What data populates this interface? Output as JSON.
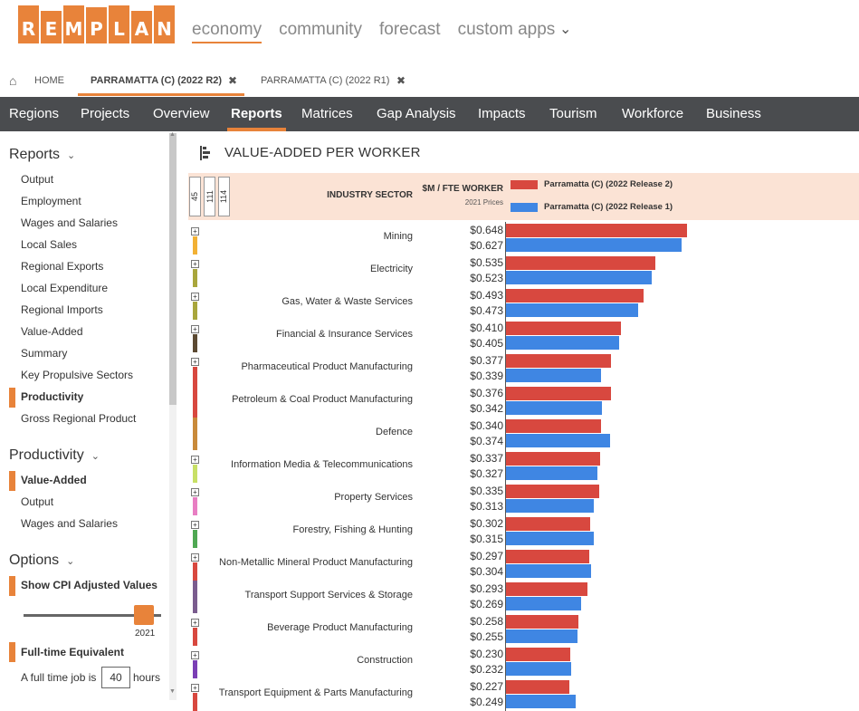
{
  "brand": {
    "letters": [
      "R",
      "E",
      "M",
      "P",
      "L",
      "A",
      "N"
    ],
    "accent": "#e8833a"
  },
  "topnav": {
    "items": [
      {
        "label": "economy",
        "active": true
      },
      {
        "label": "community",
        "active": false
      },
      {
        "label": "forecast",
        "active": false
      },
      {
        "label": "custom apps",
        "active": false
      }
    ],
    "chevron": "⌄"
  },
  "tabs": {
    "home_icon": "⌂",
    "home": "HOME",
    "items": [
      {
        "label": "PARRAMATTA (C) (2022 R2)",
        "close": "✖"
      },
      {
        "label": "PARRAMATTA (C) (2022 R1)",
        "close": "✖"
      }
    ]
  },
  "mainnav": {
    "items": [
      "Regions",
      "Projects",
      "Overview",
      "Reports",
      "Matrices",
      "Gap Analysis",
      "Impacts",
      "Tourism",
      "Workforce",
      "Business"
    ],
    "active": "Reports"
  },
  "sidebar": {
    "reports_heading": "Reports",
    "reports_items": [
      "Output",
      "Employment",
      "Wages and Salaries",
      "Local Sales",
      "Regional Exports",
      "Local Expenditure",
      "Regional Imports",
      "Value-Added",
      "Summary",
      "Key Propulsive Sectors",
      "Productivity",
      "Gross Regional Product"
    ],
    "reports_active": "Productivity",
    "productivity_heading": "Productivity",
    "productivity_items": [
      "Value-Added",
      "Output",
      "Wages and Salaries"
    ],
    "productivity_active": "Value-Added",
    "options_heading": "Options",
    "cpi_label": "Show CPI Adjusted Values",
    "cpi_year": "2021",
    "fte_label": "Full-time Equivalent",
    "fte_text_before": "A full time job is",
    "fte_hours": "40",
    "fte_text_after": "hours",
    "chevron": "⌄"
  },
  "report": {
    "title": "VALUE-ADDED PER WORKER",
    "header_buttons": [
      "45",
      "111",
      "114"
    ],
    "col_sector": "INDUSTRY SECTOR",
    "col_value": "$M / FTE WORKER",
    "col_prices": "2021 Prices",
    "expand_symbol": "+"
  },
  "chart_data": {
    "type": "bar",
    "orientation": "horizontal",
    "legend_position": "top-right",
    "series": [
      {
        "name": "Parramatta (C) (2022 Release 2)",
        "color": "#d8483f",
        "values": [
          0.648,
          0.535,
          0.493,
          0.41,
          0.377,
          0.376,
          0.34,
          0.337,
          0.335,
          0.302,
          0.297,
          0.293,
          0.258,
          0.23,
          0.227
        ]
      },
      {
        "name": "Parramatta (C) (2022 Release 1)",
        "color": "#3f86e3",
        "values": [
          0.627,
          0.523,
          0.473,
          0.405,
          0.339,
          0.342,
          0.374,
          0.327,
          0.313,
          0.315,
          0.304,
          0.269,
          0.255,
          0.232,
          0.249
        ]
      }
    ],
    "value_labels": [
      [
        "$0.648",
        "$0.627"
      ],
      [
        "$0.535",
        "$0.523"
      ],
      [
        "$0.493",
        "$0.473"
      ],
      [
        "$0.410",
        "$0.405"
      ],
      [
        "$0.377",
        "$0.339"
      ],
      [
        "$0.376",
        "$0.342"
      ],
      [
        "$0.340",
        "$0.374"
      ],
      [
        "$0.337",
        "$0.327"
      ],
      [
        "$0.335",
        "$0.313"
      ],
      [
        "$0.302",
        "$0.315"
      ],
      [
        "$0.297",
        "$0.304"
      ],
      [
        "$0.293",
        "$0.269"
      ],
      [
        "$0.258",
        "$0.255"
      ],
      [
        "$0.230",
        "$0.232"
      ],
      [
        "$0.227",
        "$0.249"
      ]
    ],
    "categories": [
      {
        "name": "Mining",
        "color": "#f2b134",
        "expandable": true
      },
      {
        "name": "Electricity",
        "color": "#a9a63c",
        "expandable": true
      },
      {
        "name": "Gas, Water & Waste Services",
        "color": "#a9a63c",
        "expandable": true
      },
      {
        "name": "Financial & Insurance Services",
        "color": "#5c4a32",
        "expandable": true
      },
      {
        "name": "Pharmaceutical Product Manufacturing",
        "color": "#d8483f",
        "expandable": true
      },
      {
        "name": "Petroleum & Coal Product Manufacturing",
        "color": "#d8483f",
        "expandable": false
      },
      {
        "name": "Defence",
        "color": "#c98a3a",
        "expandable": false
      },
      {
        "name": "Information Media & Telecommunications",
        "color": "#c8e066",
        "expandable": true
      },
      {
        "name": "Property Services",
        "color": "#e87ec3",
        "expandable": true
      },
      {
        "name": "Forestry, Fishing & Hunting",
        "color": "#4fa853",
        "expandable": true
      },
      {
        "name": "Non-Metallic Mineral Product Manufacturing",
        "color": "#d8483f",
        "expandable": true
      },
      {
        "name": "Transport Support Services & Storage",
        "color": "#7a5c8e",
        "expandable": false
      },
      {
        "name": "Beverage Product Manufacturing",
        "color": "#d8483f",
        "expandable": true
      },
      {
        "name": "Construction",
        "color": "#7b3fb5",
        "expandable": true
      },
      {
        "name": "Transport Equipment & Parts Manufacturing",
        "color": "#d8483f",
        "expandable": true
      }
    ]
  }
}
